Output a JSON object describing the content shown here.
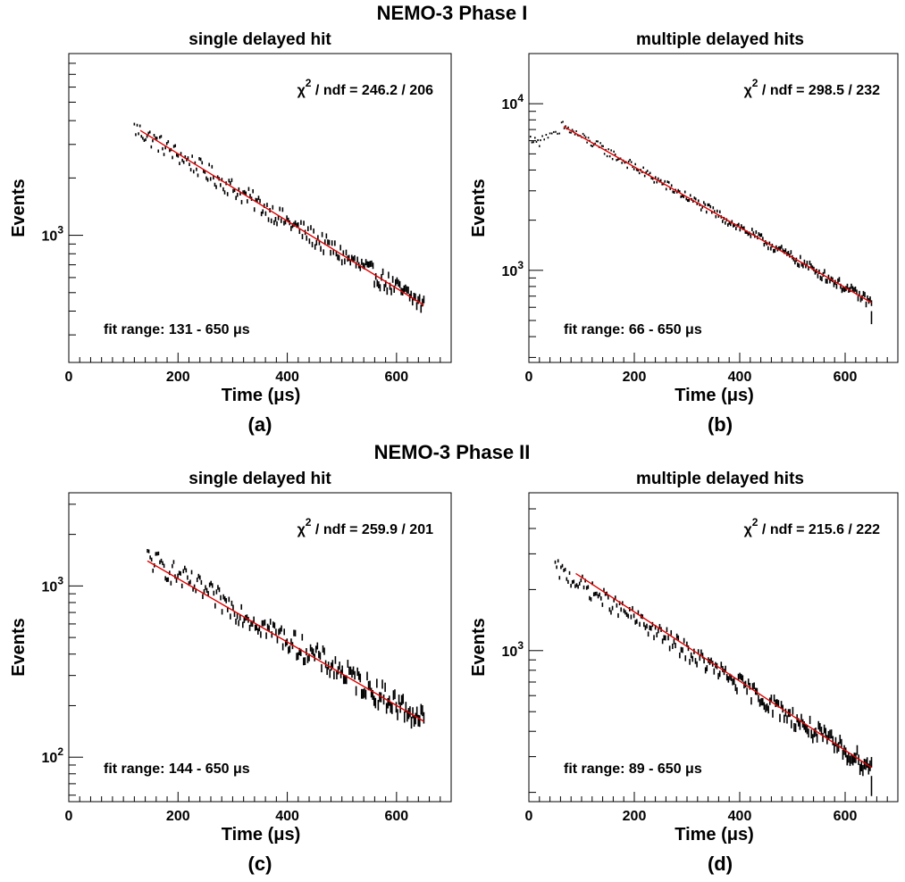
{
  "phases": [
    {
      "title": "NEMO-3  Phase I"
    },
    {
      "title": "NEMO-3  Phase II"
    }
  ],
  "chart_data": [
    {
      "type": "scatter",
      "yscale": "log",
      "subtitle": "single delayed hit",
      "panel_label": "(a)",
      "xlabel": "Time (μs)",
      "ylabel": "Events",
      "xlim": [
        0,
        700
      ],
      "ylim": [
        215,
        9000
      ],
      "x_ticks": [
        "0",
        "200",
        "400",
        "600"
      ],
      "y_ticks": [
        {
          "base": "10",
          "exp": "3",
          "value": 1000
        }
      ],
      "chi2_label": "χ",
      "chi2_exp": "2",
      "chi2_text": " / ndf = 246.2 / 206",
      "fit_range_text": "fit range:  131 - 650 μs",
      "series": [
        {
          "x_start": 120,
          "x_end": 650,
          "n": 206,
          "y_start": 3650,
          "y_end": 430,
          "jitter": 0.05
        }
      ],
      "fit": {
        "x": [
          131,
          650
        ],
        "y": [
          3550,
          430
        ],
        "color": "#e00000"
      }
    },
    {
      "type": "scatter",
      "yscale": "log",
      "subtitle": "multiple delayed hits",
      "panel_label": "(b)",
      "xlabel": "Time (μs)",
      "ylabel": "Events",
      "xlim": [
        0,
        700
      ],
      "ylim": [
        280,
        20000
      ],
      "x_ticks": [
        "0",
        "200",
        "400",
        "600"
      ],
      "y_ticks": [
        {
          "base": "10",
          "exp": "3",
          "value": 1000
        },
        {
          "base": "10",
          "exp": "4",
          "value": 10000
        }
      ],
      "chi2_label": "χ",
      "chi2_exp": "2",
      "chi2_text": " / ndf = 298.5 / 232",
      "fit_range_text": "fit range:  66 - 650 μs",
      "series": [
        {
          "x_start": 3,
          "x_end": 20,
          "n": 7,
          "y_start": 6200,
          "y_end": 5800,
          "jitter": 0.02
        },
        {
          "x_start": 22,
          "x_end": 58,
          "n": 11,
          "y_start": 6300,
          "y_end": 6600,
          "jitter": 0.02
        },
        {
          "x_start": 62,
          "x_end": 650,
          "n": 232,
          "y_start": 7400,
          "y_end": 640,
          "jitter": 0.03
        }
      ],
      "outliers": [
        {
          "x": 650,
          "y": 520
        }
      ],
      "fit": {
        "x": [
          66,
          650
        ],
        "y": [
          7300,
          640
        ],
        "color": "#e00000"
      }
    },
    {
      "type": "scatter",
      "yscale": "log",
      "subtitle": "single delayed hit",
      "panel_label": "(c)",
      "xlabel": "Time (μs)",
      "ylabel": "Events",
      "xlim": [
        0,
        700
      ],
      "ylim": [
        55,
        3500
      ],
      "x_ticks": [
        "0",
        "200",
        "400",
        "600"
      ],
      "y_ticks": [
        {
          "base": "10",
          "exp": "2",
          "value": 100
        },
        {
          "base": "10",
          "exp": "3",
          "value": 1000
        }
      ],
      "chi2_label": "χ",
      "chi2_exp": "2",
      "chi2_text": " / ndf = 259.9 / 201",
      "fit_range_text": "fit range:  144 - 650 μs",
      "series": [
        {
          "x_start": 144,
          "x_end": 650,
          "n": 201,
          "y_start": 1460,
          "y_end": 165,
          "jitter": 0.07
        }
      ],
      "fit": {
        "x": [
          144,
          650
        ],
        "y": [
          1400,
          162
        ],
        "color": "#e00000"
      }
    },
    {
      "type": "scatter",
      "yscale": "log",
      "subtitle": "multiple delayed hits",
      "panel_label": "(d)",
      "xlabel": "Time (μs)",
      "ylabel": "Events",
      "xlim": [
        0,
        700
      ],
      "ylim": [
        180,
        6000
      ],
      "x_ticks": [
        "0",
        "200",
        "400",
        "600"
      ],
      "y_ticks": [
        {
          "base": "10",
          "exp": "3",
          "value": 1000
        }
      ],
      "chi2_label": "χ",
      "chi2_exp": "2",
      "chi2_text": " / ndf = 215.6 / 222",
      "fit_range_text": "fit range:  89 - 650 μs",
      "series": [
        {
          "x_start": 50,
          "x_end": 650,
          "n": 222,
          "y_start": 2550,
          "y_end": 265,
          "jitter": 0.045
        }
      ],
      "outliers": [
        {
          "x": 650,
          "y": 215
        }
      ],
      "fit": {
        "x": [
          89,
          650
        ],
        "y": [
          2400,
          265
        ],
        "color": "#e00000"
      }
    }
  ]
}
